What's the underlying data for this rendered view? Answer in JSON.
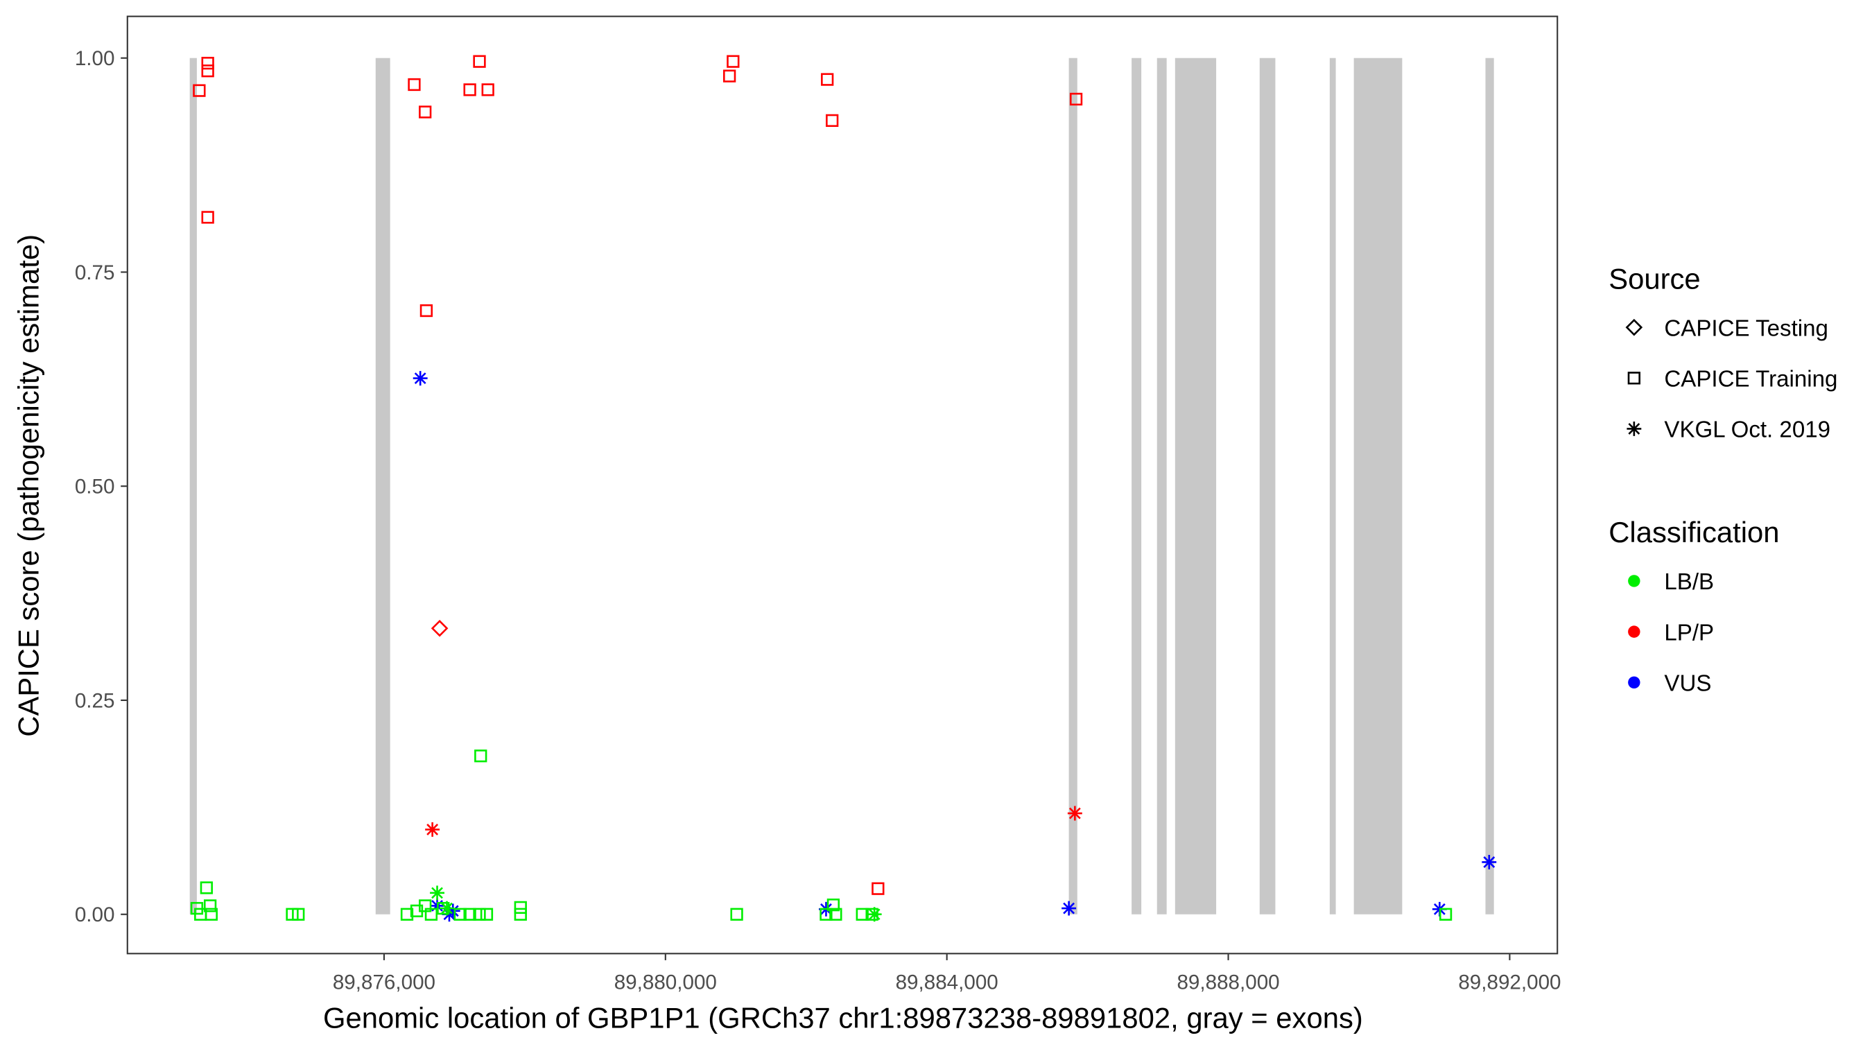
{
  "chart_data": {
    "type": "scatter",
    "title": "",
    "xlabel": "Genomic location of GBP1P1 (GRCh37 chr1:89873238-89891802, gray = exons)",
    "ylabel": "CAPICE score (pathogenicity estimate)",
    "xlim": [
      89872500,
      89892800
    ],
    "ylim": [
      -0.046,
      1.048
    ],
    "xticks": [
      89876000,
      89880000,
      89884000,
      89888000,
      89892000
    ],
    "xtick_labels": [
      "89,876,000",
      "89,880,000",
      "89,884,000",
      "89,888,000",
      "89,892,000"
    ],
    "yticks": [
      0,
      0.25,
      0.5,
      0.75,
      1.0
    ],
    "ytick_labels": [
      "0.00",
      "0.25",
      "0.50",
      "0.75",
      "1.00"
    ],
    "grid": false,
    "exons": [
      [
        89873238,
        89873339
      ],
      [
        89875880,
        89876086
      ],
      [
        89885734,
        89885854
      ],
      [
        89886626,
        89886764
      ],
      [
        89886987,
        89887124
      ],
      [
        89887244,
        89887828
      ],
      [
        89888446,
        89888669
      ],
      [
        89889442,
        89889528
      ],
      [
        89889785,
        89890472
      ],
      [
        89891656,
        89891776
      ]
    ],
    "colors": {
      "LB/B": "#00ee00",
      "LP/P": "#ff0000",
      "VUS": "#0000ff",
      "exon": "#c8c8c8"
    },
    "legend": {
      "position": "right",
      "source_title": "Source",
      "source_items": [
        {
          "label": "CAPICE Testing",
          "shape": "diamond"
        },
        {
          "label": "CAPICE Training",
          "shape": "square"
        },
        {
          "label": "VKGL Oct. 2019",
          "shape": "asterisk"
        }
      ],
      "class_title": "Classification",
      "class_items": [
        {
          "label": "LB/B"
        },
        {
          "label": "LP/P"
        },
        {
          "label": "VUS"
        }
      ]
    },
    "points_columns": [
      "position",
      "score",
      "source",
      "classification"
    ],
    "points": [
      [
        89873373,
        0.962,
        "CAPICE Training",
        "LP/P"
      ],
      [
        89873494,
        0.994,
        "CAPICE Training",
        "LP/P"
      ],
      [
        89873494,
        0.985,
        "CAPICE Training",
        "LP/P"
      ],
      [
        89873494,
        0.814,
        "CAPICE Training",
        "LP/P"
      ],
      [
        89876429,
        0.969,
        "CAPICE Training",
        "LP/P"
      ],
      [
        89876584,
        0.937,
        "CAPICE Training",
        "LP/P"
      ],
      [
        89876601,
        0.705,
        "CAPICE Training",
        "LP/P"
      ],
      [
        89877219,
        0.963,
        "CAPICE Training",
        "LP/P"
      ],
      [
        89877356,
        0.996,
        "CAPICE Training",
        "LP/P"
      ],
      [
        89877476,
        0.963,
        "CAPICE Training",
        "LP/P"
      ],
      [
        89880910,
        0.979,
        "CAPICE Training",
        "LP/P"
      ],
      [
        89880961,
        0.996,
        "CAPICE Training",
        "LP/P"
      ],
      [
        89882300,
        0.975,
        "CAPICE Training",
        "LP/P"
      ],
      [
        89882369,
        0.927,
        "CAPICE Training",
        "LP/P"
      ],
      [
        89885837,
        0.952,
        "CAPICE Training",
        "LP/P"
      ],
      [
        89883021,
        0.03,
        "CAPICE Training",
        "LP/P"
      ],
      [
        89876790,
        0.334,
        "CAPICE Testing",
        "LP/P"
      ],
      [
        89876687,
        0.099,
        "VKGL Oct. 2019",
        "LP/P"
      ],
      [
        89885820,
        0.118,
        "VKGL Oct. 2019",
        "LP/P"
      ],
      [
        89876515,
        0.626,
        "VKGL Oct. 2019",
        "VUS"
      ],
      [
        89876755,
        0.01,
        "VKGL Oct. 2019",
        "VUS"
      ],
      [
        89876979,
        0.004,
        "VKGL Oct. 2019",
        "VUS"
      ],
      [
        89876927,
        0.0,
        "VKGL Oct. 2019",
        "VUS"
      ],
      [
        89882283,
        0.006,
        "VKGL Oct. 2019",
        "VUS"
      ],
      [
        89885734,
        0.007,
        "VKGL Oct. 2019",
        "VUS"
      ],
      [
        89891004,
        0.006,
        "VKGL Oct. 2019",
        "VUS"
      ],
      [
        89891708,
        0.061,
        "VKGL Oct. 2019",
        "VUS"
      ],
      [
        89873339,
        0.007,
        "CAPICE Training",
        "LB/B"
      ],
      [
        89873391,
        0.0,
        "CAPICE Training",
        "LB/B"
      ],
      [
        89873476,
        0.031,
        "CAPICE Training",
        "LB/B"
      ],
      [
        89873528,
        0.01,
        "CAPICE Training",
        "LB/B"
      ],
      [
        89873545,
        0.0,
        "CAPICE Training",
        "LB/B"
      ],
      [
        89874695,
        0.0,
        "CAPICE Training",
        "LB/B"
      ],
      [
        89874781,
        0.0,
        "CAPICE Training",
        "LB/B"
      ],
      [
        89876326,
        0.0,
        "CAPICE Training",
        "LB/B"
      ],
      [
        89876464,
        0.004,
        "CAPICE Training",
        "LB/B"
      ],
      [
        89876584,
        0.01,
        "CAPICE Training",
        "LB/B"
      ],
      [
        89876670,
        0.0,
        "CAPICE Training",
        "LB/B"
      ],
      [
        89876841,
        0.007,
        "CAPICE Training",
        "LB/B"
      ],
      [
        89877082,
        0.0,
        "CAPICE Training",
        "LB/B"
      ],
      [
        89877219,
        0.0,
        "CAPICE Training",
        "LB/B"
      ],
      [
        89877356,
        0.0,
        "CAPICE Training",
        "LB/B"
      ],
      [
        89877459,
        0.0,
        "CAPICE Training",
        "LB/B"
      ],
      [
        89877373,
        0.185,
        "CAPICE Training",
        "LB/B"
      ],
      [
        89877940,
        0.008,
        "CAPICE Training",
        "LB/B"
      ],
      [
        89877940,
        0.0,
        "CAPICE Training",
        "LB/B"
      ],
      [
        89881013,
        0.0,
        "CAPICE Training",
        "LB/B"
      ],
      [
        89882283,
        0.0,
        "CAPICE Training",
        "LB/B"
      ],
      [
        89882386,
        0.011,
        "CAPICE Training",
        "LB/B"
      ],
      [
        89882420,
        0.0,
        "CAPICE Training",
        "LB/B"
      ],
      [
        89882798,
        0.0,
        "CAPICE Training",
        "LB/B"
      ],
      [
        89882935,
        0.0,
        "CAPICE Training",
        "LB/B"
      ],
      [
        89891090,
        0.0,
        "CAPICE Training",
        "LB/B"
      ],
      [
        89876755,
        0.025,
        "VKGL Oct. 2019",
        "LB/B"
      ],
      [
        89876893,
        0.007,
        "VKGL Oct. 2019",
        "LB/B"
      ],
      [
        89882970,
        0.0,
        "VKGL Oct. 2019",
        "LB/B"
      ]
    ]
  }
}
